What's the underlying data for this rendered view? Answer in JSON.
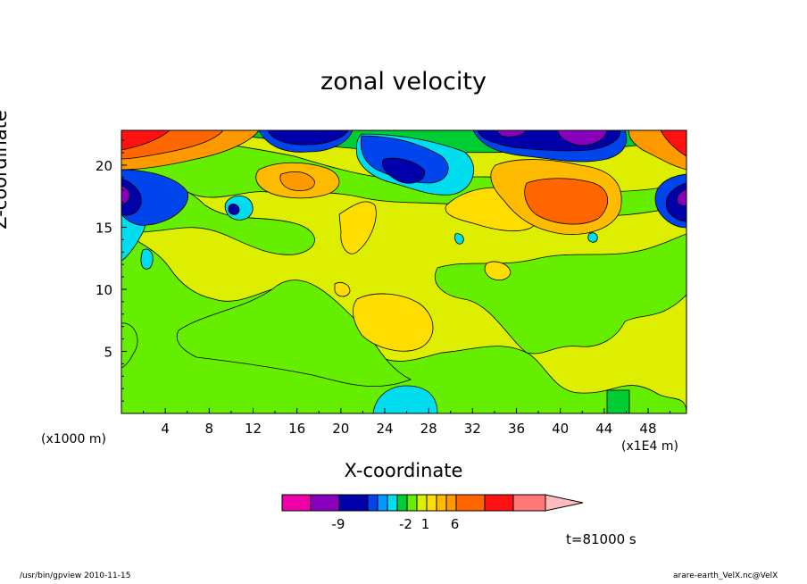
{
  "chart_data": {
    "type": "heatmap",
    "title": "zonal velocity",
    "xlabel": "X-coordinate",
    "ylabel": "Z-coordinate",
    "x_unit_left": "(x1000 m)",
    "x_unit_right": "(x1E4 m)",
    "xlim": [
      0,
      51.5
    ],
    "ylim": [
      0,
      22.8
    ],
    "x_ticks": [
      4,
      8,
      12,
      16,
      20,
      24,
      28,
      32,
      36,
      40,
      44,
      48
    ],
    "y_ticks": [
      5,
      10,
      15,
      20
    ],
    "colorbar": {
      "colors": [
        "#ee00aa",
        "#8800bb",
        "#0000aa",
        "#0044ee",
        "#0099ff",
        "#00ddee",
        "#00cc33",
        "#66ee00",
        "#ddee00",
        "#ffdd00",
        "#ffbb00",
        "#ff9900",
        "#ff6600",
        "#ff1111",
        "#ff7777",
        "#ffbbbb"
      ],
      "labels": [
        {
          "text": "-9",
          "index": 1
        },
        {
          "text": "-2",
          "index": 5
        },
        {
          "text": "1",
          "index": 7
        },
        {
          "text": "6",
          "index": 10
        }
      ]
    },
    "time_label": "t=81000 s"
  },
  "footer": {
    "left": "/usr/bin/gpview   2010-11-15",
    "right": "arare-earth_VelX.nc@VelX"
  }
}
